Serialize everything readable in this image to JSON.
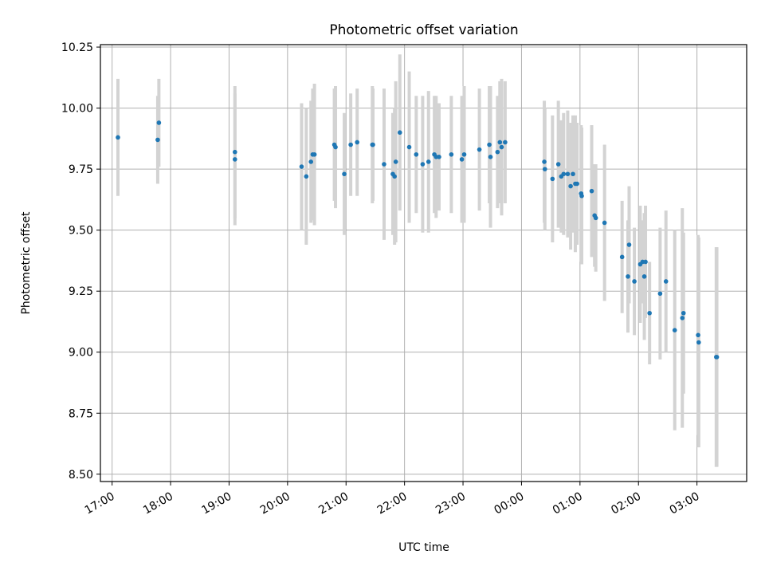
{
  "chart_data": {
    "type": "scatter",
    "title": "Photometric offset variation",
    "xlabel": "UTC time",
    "ylabel": "Photometric offset",
    "ylim": [
      8.47,
      10.26
    ],
    "xlim_hours": [
      16.8,
      27.85
    ],
    "grid": true,
    "colors": {
      "point": "#1f77b4",
      "errorbar": "#d3d3d3",
      "grid": "#b0b0b0"
    },
    "y_ticks": [
      "8.50",
      "8.75",
      "9.00",
      "9.25",
      "9.50",
      "9.75",
      "10.00",
      "10.25"
    ],
    "x_ticks": [
      "17:00",
      "18:00",
      "19:00",
      "20:00",
      "21:00",
      "22:00",
      "23:00",
      "00:00",
      "01:00",
      "02:00",
      "03:00"
    ],
    "x_tick_hours": [
      17,
      18,
      19,
      20,
      21,
      22,
      23,
      24,
      25,
      26,
      27
    ],
    "series": [
      {
        "x": [
          17.1,
          17.78,
          17.8,
          19.1,
          19.1,
          20.24,
          20.32,
          20.4,
          20.43,
          20.46,
          20.8,
          20.82,
          20.97,
          21.08,
          21.19,
          21.45,
          21.46,
          21.65,
          21.8,
          21.83,
          21.85,
          21.92,
          22.08,
          22.2,
          22.31,
          22.41,
          22.51,
          22.54,
          22.59,
          22.8,
          22.98,
          23.02,
          23.28,
          23.45,
          23.47,
          23.59,
          23.63,
          23.66,
          23.72,
          24.39,
          24.4,
          24.53,
          24.63,
          24.68,
          24.72,
          24.79,
          24.84,
          24.88,
          24.92,
          24.95,
          25.02,
          25.03,
          25.2,
          25.25,
          25.27,
          25.42,
          25.72,
          25.82,
          25.84,
          25.93,
          26.03,
          26.07,
          26.1,
          26.12,
          26.19,
          26.37,
          26.47,
          26.62,
          26.75,
          26.77,
          27.02,
          27.03,
          27.33,
          27.34
        ],
        "y": [
          9.88,
          9.87,
          9.94,
          9.82,
          9.79,
          9.76,
          9.72,
          9.78,
          9.81,
          9.81,
          9.85,
          9.84,
          9.73,
          9.85,
          9.86,
          9.85,
          9.85,
          9.77,
          9.73,
          9.72,
          9.78,
          9.9,
          9.84,
          9.81,
          9.77,
          9.78,
          9.81,
          9.8,
          9.8,
          9.81,
          9.79,
          9.81,
          9.83,
          9.85,
          9.8,
          9.82,
          9.86,
          9.84,
          9.86,
          9.78,
          9.75,
          9.71,
          9.77,
          9.72,
          9.73,
          9.73,
          9.68,
          9.73,
          9.69,
          9.69,
          9.65,
          9.64,
          9.66,
          9.56,
          9.55,
          9.53,
          9.39,
          9.31,
          9.44,
          9.29,
          9.36,
          9.37,
          9.31,
          9.37,
          9.16,
          9.24,
          9.29,
          9.09,
          9.14,
          9.16,
          9.07,
          9.04,
          8.98,
          8.98
        ],
        "err": [
          0.24,
          0.18,
          0.18,
          0.27,
          0.27,
          0.26,
          0.28,
          0.25,
          0.27,
          0.29,
          0.23,
          0.25,
          0.25,
          0.21,
          0.22,
          0.24,
          0.23,
          0.31,
          0.25,
          0.28,
          0.33,
          0.32,
          0.31,
          0.24,
          0.28,
          0.29,
          0.24,
          0.25,
          0.22,
          0.24,
          0.26,
          0.28,
          0.25,
          0.24,
          0.29,
          0.23,
          0.25,
          0.28,
          0.25,
          0.25,
          0.25,
          0.26,
          0.26,
          0.23,
          0.25,
          0.26,
          0.26,
          0.24,
          0.28,
          0.25,
          0.28,
          0.28,
          0.27,
          0.21,
          0.22,
          0.32,
          0.23,
          0.23,
          0.24,
          0.22,
          0.24,
          0.17,
          0.26,
          0.23,
          0.21,
          0.27,
          0.29,
          0.41,
          0.45,
          0.33,
          0.41,
          0.43,
          0.45,
          0.45
        ]
      }
    ]
  }
}
